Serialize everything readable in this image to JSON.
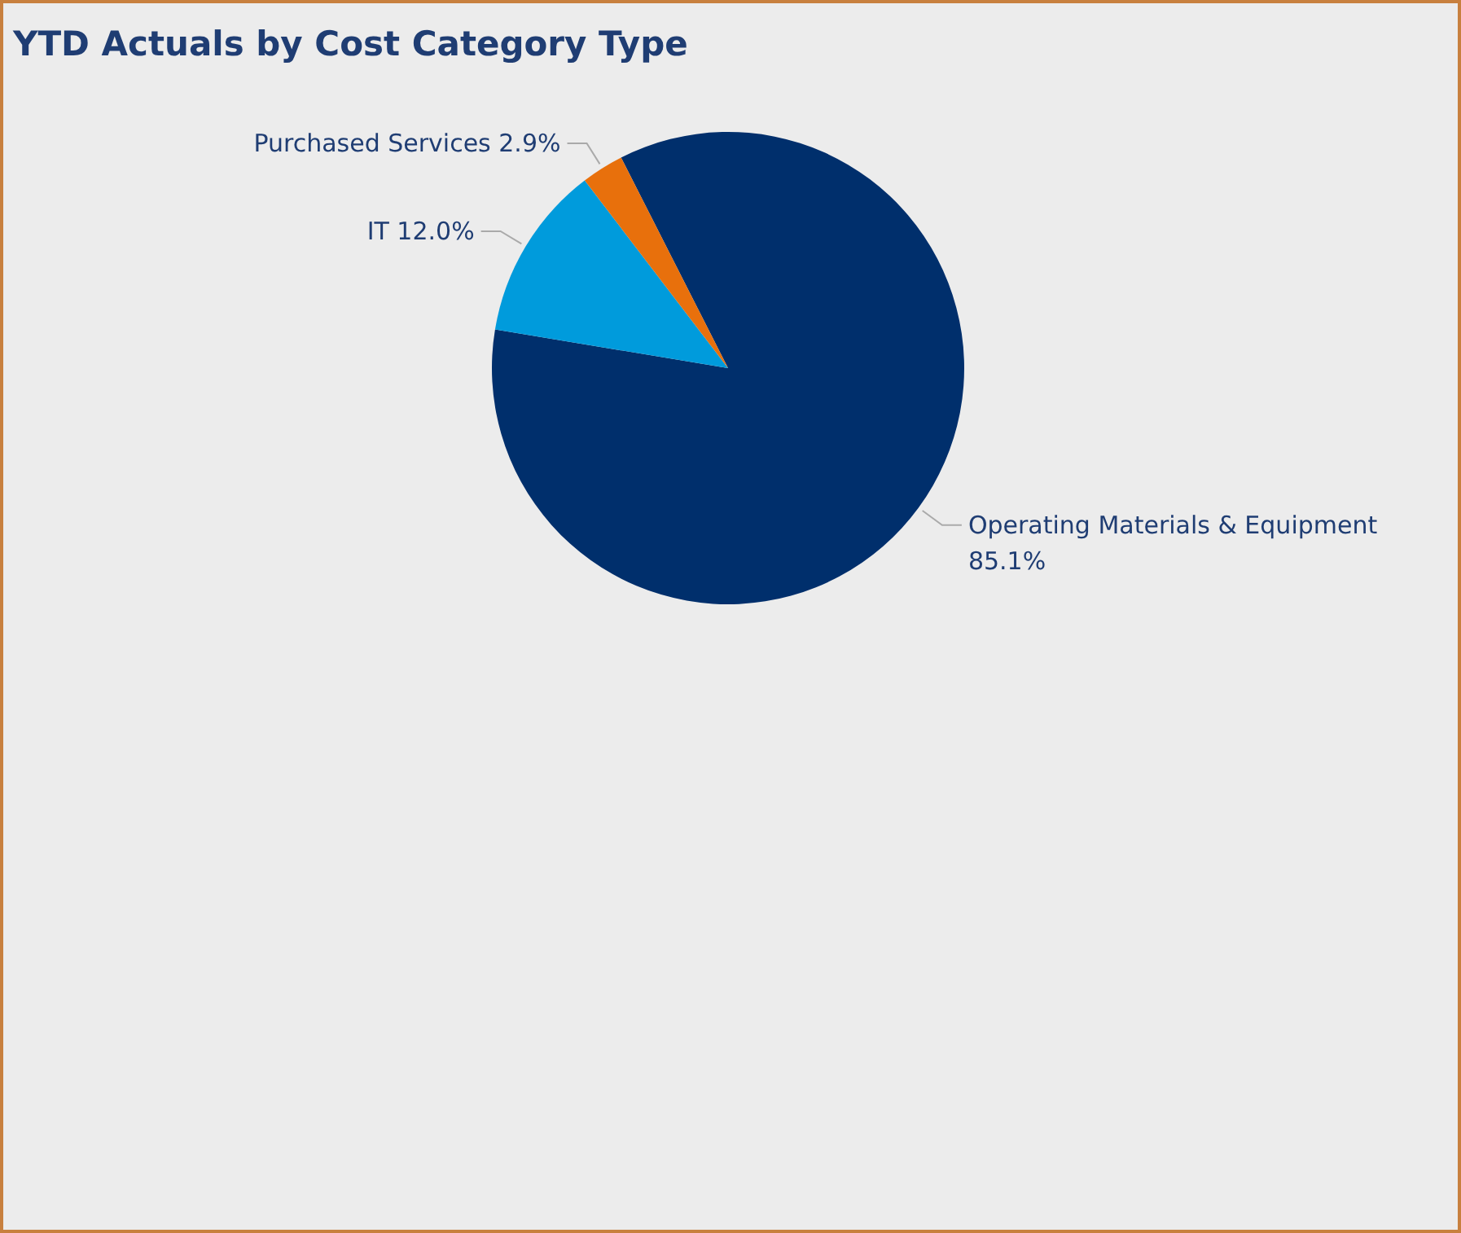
{
  "chart_data": {
    "type": "pie",
    "title": "YTD Actuals by Cost Category Type",
    "categories": [
      "Operating Materials & Equipment",
      "IT",
      "Purchased Services"
    ],
    "values": [
      85.1,
      12.0,
      2.9
    ],
    "value_labels": [
      "85.1%",
      "12.0%",
      "2.9%"
    ],
    "colors": [
      "#002f6c",
      "#009bdc",
      "#e8700c"
    ],
    "legend": false
  }
}
